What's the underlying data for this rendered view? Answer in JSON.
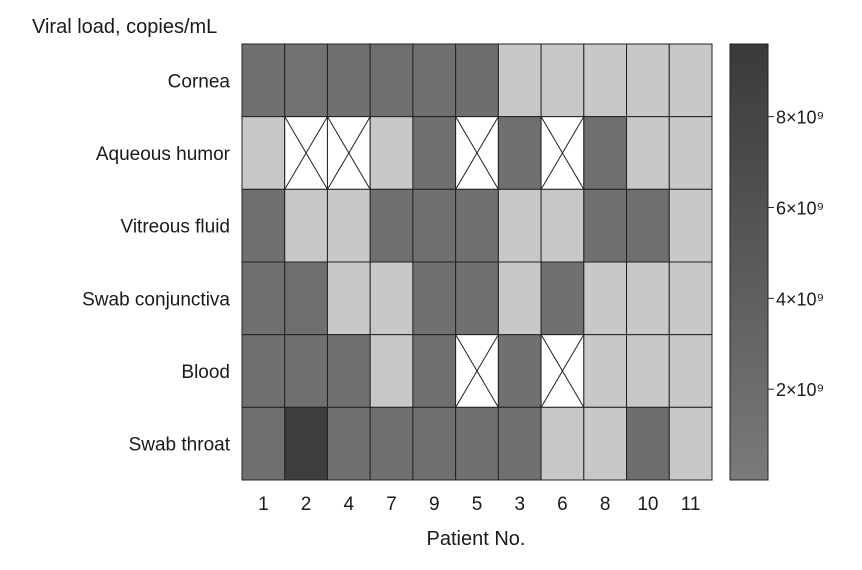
{
  "chart_data": {
    "type": "heatmap",
    "title": "Viral load, copies/mL",
    "xlabel": "Patient No.",
    "ylabel": "",
    "x_categories": [
      "1",
      "2",
      "4",
      "7",
      "9",
      "5",
      "3",
      "6",
      "8",
      "10",
      "11"
    ],
    "y_categories": [
      "Cornea",
      "Aqueous humor",
      "Vitreous fluid",
      "Swab conjunctiva",
      "Blood",
      "Swab throat"
    ],
    "values": [
      [
        1500000000,
        1400000000,
        1500000000,
        1600000000,
        1500000000,
        1800000000,
        0,
        0,
        0,
        0,
        0
      ],
      [
        0,
        null,
        null,
        0,
        1500000000,
        null,
        1500000000,
        null,
        1700000000,
        0,
        0
      ],
      [
        1500000000,
        0,
        0,
        1500000000,
        1500000000,
        1500000000,
        0,
        0,
        1500000000,
        1700000000,
        0
      ],
      [
        1500000000,
        1600000000,
        0,
        0,
        1500000000,
        1500000000,
        0,
        1700000000,
        0,
        0,
        0
      ],
      [
        1500000000,
        1500000000,
        1500000000,
        0,
        1500000000,
        null,
        1500000000,
        null,
        0,
        0,
        0
      ],
      [
        1500000000,
        9200000000,
        1500000000,
        1600000000,
        1500000000,
        1500000000,
        1500000000,
        0,
        0,
        1800000000,
        0
      ]
    ],
    "colorbar": {
      "ticks": [
        2000000000,
        4000000000,
        6000000000,
        8000000000
      ],
      "tick_labels": [
        "2×10⁹",
        "4×10⁹",
        "6×10⁹",
        "8×10⁹"
      ],
      "range": [
        0,
        9600000000
      ],
      "color_low": "#7a7a7a",
      "color_high": "#3a3a3a"
    },
    "undetected_color": "#c8c8c8",
    "missing_marker": "crossed-white-cell",
    "grid": true
  }
}
